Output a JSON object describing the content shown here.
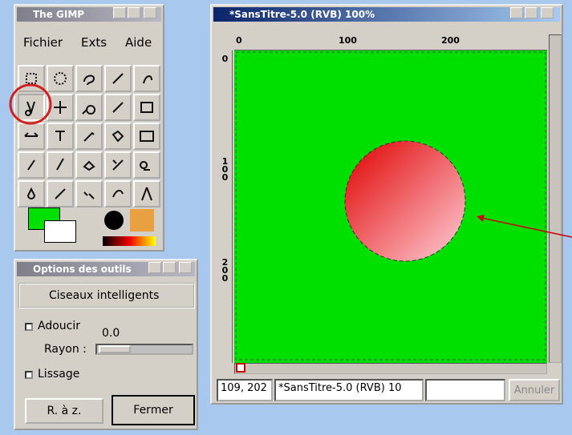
{
  "toolbox": {
    "title": "The GIMP",
    "menu": [
      "Fichier",
      "Exts",
      "Aide"
    ]
  },
  "tool_options": {
    "title": "Options des outils",
    "tool": "Ciseaux intelligents",
    "adoucir": "Adoucir",
    "value": "0.0",
    "rayon": "Rayon :",
    "lissage": "Lissage",
    "buttons": [
      "R. à z.",
      "Fermer"
    ]
  },
  "image_window": {
    "title": "*SansTitre-5.0 (RVB) 100%",
    "h_ruler": [
      "0",
      "100",
      "200"
    ],
    "v_ruler": [
      "0",
      "100",
      "200"
    ],
    "status": {
      "coords": "109, 202",
      "name": "*SansTitre-5.0 (RVB) 10",
      "cancel": "Annuler"
    }
  }
}
